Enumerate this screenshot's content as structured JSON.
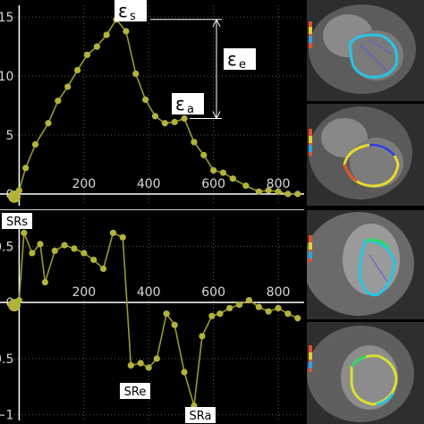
{
  "chart_data": [
    {
      "type": "line",
      "xlim": [
        -15,
        880
      ],
      "ylim": [
        -1,
        16
      ],
      "x_ticks": [
        "200",
        "400",
        "600",
        "800"
      ],
      "y_ticks": [
        "0",
        "5",
        "10",
        "15"
      ],
      "series": [
        {
          "x": [
            0,
            20,
            50,
            90,
            120,
            150,
            180,
            210,
            240,
            270,
            300,
            330,
            360,
            390,
            420,
            450,
            480,
            510,
            540,
            570,
            600,
            630,
            660,
            700,
            740,
            770,
            800,
            830,
            860
          ],
          "y": [
            0.3,
            2.2,
            4.2,
            6.0,
            7.9,
            9.1,
            10.5,
            11.8,
            12.5,
            13.5,
            14.8,
            13.8,
            10.2,
            8.0,
            6.6,
            6.0,
            6.1,
            6.4,
            4.4,
            3.3,
            2.0,
            1.8,
            1.3,
            0.7,
            0.2,
            0.3,
            0.2,
            0.0,
            0.0
          ]
        }
      ],
      "annotations": {
        "peak": "ε",
        "peak_sub": "s",
        "early": "ε",
        "early_sub": "e",
        "active": "ε",
        "active_sub": "a"
      }
    },
    {
      "type": "line",
      "xlim": [
        -15,
        880
      ],
      "ylim": [
        -1.05,
        0.75
      ],
      "x_ticks": [
        "200",
        "400",
        "600",
        "800"
      ],
      "y_ticks": [
        "0.5",
        "0",
        "−0.5",
        "−1"
      ],
      "series": [
        {
          "x": [
            0,
            15,
            40,
            65,
            80,
            110,
            140,
            170,
            200,
            230,
            260,
            290,
            320,
            345,
            375,
            400,
            425,
            455,
            480,
            510,
            540,
            565,
            595,
            620,
            650,
            680,
            710,
            740,
            770,
            800,
            830,
            860
          ],
          "y": [
            0.02,
            0.62,
            0.44,
            0.52,
            0.18,
            0.46,
            0.51,
            0.48,
            0.44,
            0.38,
            0.3,
            0.62,
            0.58,
            -0.56,
            -0.54,
            -0.58,
            -0.5,
            -0.1,
            -0.2,
            -0.62,
            -0.92,
            -0.3,
            -0.12,
            -0.1,
            -0.05,
            -0.02,
            0.02,
            -0.04,
            -0.08,
            -0.05,
            -0.1,
            -0.14
          ]
        }
      ],
      "annotations": {
        "systolic": "SRs",
        "early": "SRe",
        "active": "SRa"
      }
    }
  ],
  "colors": {
    "background": "#000000",
    "line": "#9a9a2a",
    "marker": "#b3b33c",
    "grid": "#5a5a5a",
    "axis": "#ffffff",
    "tick_text": "#d7d7d7",
    "label_bg": "#ffffff",
    "label_text": "#000000"
  }
}
